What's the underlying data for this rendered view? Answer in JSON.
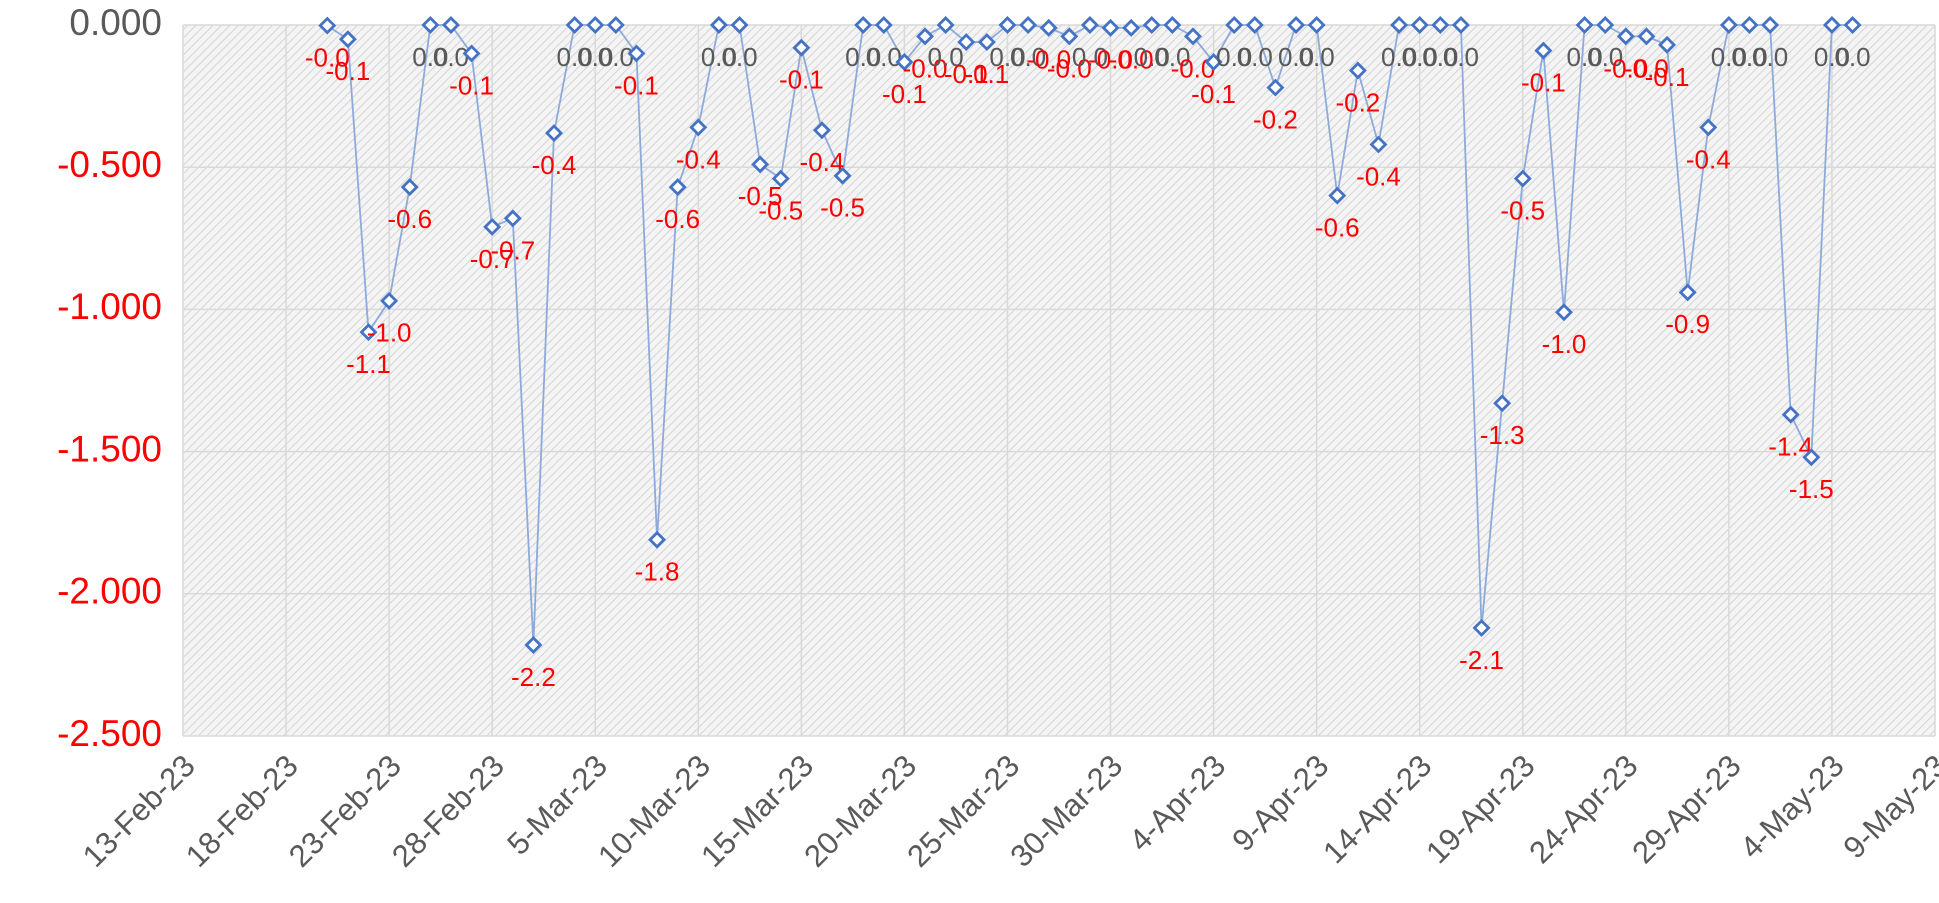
{
  "chart_data": {
    "type": "line",
    "x": [
      "2023-02-20",
      "2023-02-21",
      "2023-02-22",
      "2023-02-23",
      "2023-02-24",
      "2023-02-25",
      "2023-02-26",
      "2023-02-27",
      "2023-02-28",
      "2023-03-01",
      "2023-03-02",
      "2023-03-03",
      "2023-03-04",
      "2023-03-05",
      "2023-03-06",
      "2023-03-07",
      "2023-03-08",
      "2023-03-09",
      "2023-03-10",
      "2023-03-11",
      "2023-03-12",
      "2023-03-13",
      "2023-03-14",
      "2023-03-15",
      "2023-03-16",
      "2023-03-17",
      "2023-03-18",
      "2023-03-19",
      "2023-03-20",
      "2023-03-21",
      "2023-03-22",
      "2023-03-23",
      "2023-03-24",
      "2023-03-25",
      "2023-03-26",
      "2023-03-27",
      "2023-03-28",
      "2023-03-29",
      "2023-03-30",
      "2023-03-31",
      "2023-04-01",
      "2023-04-02",
      "2023-04-03",
      "2023-04-04",
      "2023-04-05",
      "2023-04-06",
      "2023-04-07",
      "2023-04-08",
      "2023-04-09",
      "2023-04-10",
      "2023-04-11",
      "2023-04-12",
      "2023-04-13",
      "2023-04-14",
      "2023-04-15",
      "2023-04-16",
      "2023-04-17",
      "2023-04-18",
      "2023-04-19",
      "2023-04-20",
      "2023-04-21",
      "2023-04-22",
      "2023-04-23",
      "2023-04-24",
      "2023-04-25",
      "2023-04-26",
      "2023-04-27",
      "2023-04-28",
      "2023-04-29",
      "2023-04-30",
      "2023-05-01",
      "2023-05-02",
      "2023-05-03",
      "2023-05-04",
      "2023-05-05"
    ],
    "series": [
      {
        "color": "#4472c4",
        "line_color": "#8eaadb",
        "values": [
          -0.002,
          -0.05,
          -1.08,
          -0.97,
          -0.57,
          0,
          0,
          -0.1,
          -0.71,
          -0.68,
          -2.18,
          -0.38,
          0,
          0,
          0,
          -0.1,
          -1.81,
          -0.57,
          -0.36,
          0,
          0,
          -0.49,
          -0.54,
          -0.08,
          -0.37,
          -0.53,
          0,
          0,
          -0.13,
          -0.04,
          0,
          -0.06,
          -0.06,
          0,
          0,
          -0.01,
          -0.04,
          0,
          -0.01,
          -0.01,
          0,
          0,
          -0.04,
          -0.13,
          0,
          0,
          -0.22,
          0,
          0,
          -0.6,
          -0.16,
          -0.42,
          0,
          0,
          0,
          0,
          -2.12,
          -1.33,
          -0.54,
          -0.09,
          -1.01,
          0,
          0,
          -0.04,
          -0.04,
          -0.07,
          -0.94,
          -0.36,
          0,
          0,
          0,
          -1.37,
          -1.52,
          0,
          0
        ],
        "value_labels": [
          "-0.0",
          "-0.1",
          "-1.1",
          "-1.0",
          "-0.6",
          "0.0",
          "0.0",
          "-0.1",
          "-0.7",
          "-0.7",
          "-2.2",
          "-0.4",
          "0.0",
          "0.0",
          "0.0",
          "-0.1",
          "-1.8",
          "-0.6",
          "-0.4",
          "0.0",
          "0.0",
          "-0.5",
          "-0.5",
          "-0.1",
          "-0.4",
          "-0.5",
          "0.0",
          "0.0",
          "-0.1",
          "-0.0",
          "0.0",
          "-0.1",
          "-0.1",
          "0.0",
          "0.0",
          "-0.0",
          "-0.0",
          "0.0",
          "-0.0",
          "-0.0",
          "0.0",
          "0.0",
          "-0.0",
          "-0.1",
          "0.0",
          "0.0",
          "-0.2",
          "0.0",
          "0.0",
          "-0.6",
          "-0.2",
          "-0.4",
          "0.0",
          "0.0",
          "0.0",
          "0.0",
          "-2.1",
          "-1.3",
          "-0.5",
          "-0.1",
          "-1.0",
          "0.0",
          "0.0",
          "-0.0",
          "-0.0",
          "-0.1",
          "-0.9",
          "-0.4",
          "0.0",
          "0.0",
          "0.0",
          "-1.4",
          "-1.5",
          "0.0",
          "0.0"
        ]
      }
    ],
    "negative_color": "#ff0000",
    "zero_color": "#595959",
    "xlim": [
      "2023-02-13",
      "2023-05-09"
    ],
    "xticks": [
      {
        "value": "2023-02-13",
        "label": "13-Feb-23"
      },
      {
        "value": "2023-02-18",
        "label": "18-Feb-23"
      },
      {
        "value": "2023-02-23",
        "label": "23-Feb-23"
      },
      {
        "value": "2023-02-28",
        "label": "28-Feb-23"
      },
      {
        "value": "2023-03-05",
        "label": "5-Mar-23"
      },
      {
        "value": "2023-03-10",
        "label": "10-Mar-23"
      },
      {
        "value": "2023-03-15",
        "label": "15-Mar-23"
      },
      {
        "value": "2023-03-20",
        "label": "20-Mar-23"
      },
      {
        "value": "2023-03-25",
        "label": "25-Mar-23"
      },
      {
        "value": "2023-03-30",
        "label": "30-Mar-23"
      },
      {
        "value": "2023-04-04",
        "label": "4-Apr-23"
      },
      {
        "value": "2023-04-09",
        "label": "9-Apr-23"
      },
      {
        "value": "2023-04-14",
        "label": "14-Apr-23"
      },
      {
        "value": "2023-04-19",
        "label": "19-Apr-23"
      },
      {
        "value": "2023-04-24",
        "label": "24-Apr-23"
      },
      {
        "value": "2023-04-29",
        "label": "29-Apr-23"
      },
      {
        "value": "2023-05-04",
        "label": "4-May-23"
      },
      {
        "value": "2023-05-09",
        "label": "9-May-23"
      }
    ],
    "ylim": [
      -2.5,
      0
    ],
    "yticks": [
      {
        "value": 0,
        "label": "0.000"
      },
      {
        "value": -0.5,
        "label": "-0.500"
      },
      {
        "value": -1,
        "label": "-1.000"
      },
      {
        "value": -1.5,
        "label": "-1.500"
      },
      {
        "value": -2,
        "label": "-2.000"
      },
      {
        "value": -2.5,
        "label": "-2.500"
      }
    ],
    "grid": true
  }
}
